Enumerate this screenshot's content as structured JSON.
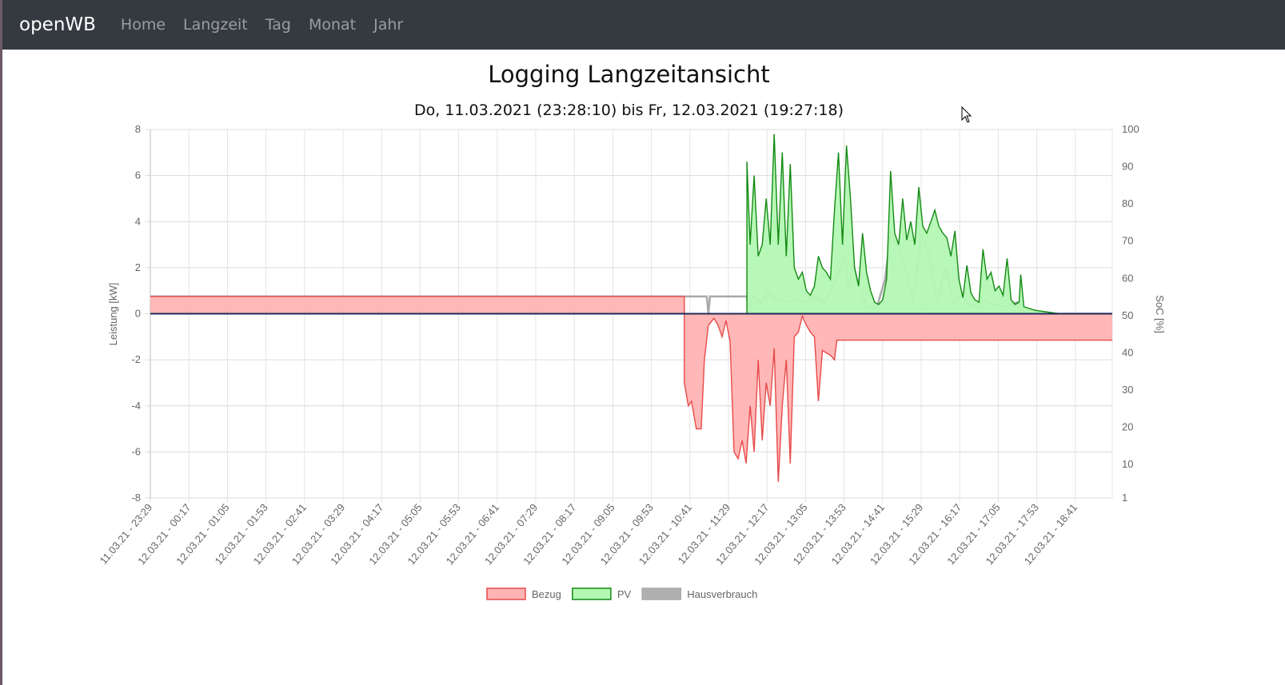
{
  "nav": {
    "brand": "openWB",
    "items": [
      "Home",
      "Langzeit",
      "Tag",
      "Monat",
      "Jahr"
    ]
  },
  "page": {
    "title": "Logging Langzeitansicht",
    "subtitle": "Do, 11.03.2021 (23:28:10) bis Fr, 12.03.2021 (19:27:18)"
  },
  "chart_data": {
    "type": "line",
    "title": "Logging Langzeitansicht",
    "x_unit": "minutes since 11.03.21 23:29",
    "xlim": [
      0,
      1198
    ],
    "x_ticks": [
      0,
      48,
      96,
      144,
      192,
      240,
      288,
      336,
      384,
      432,
      480,
      528,
      576,
      624,
      672,
      720,
      768,
      816,
      864,
      912,
      960,
      1008,
      1056,
      1104,
      1152
    ],
    "x_tick_labels": [
      "11.03.21 - 23:29",
      "12.03.21 - 00:17",
      "12.03.21 - 01:05",
      "12.03.21 - 01:53",
      "12.03.21 - 02:41",
      "12.03.21 - 03:29",
      "12.03.21 - 04:17",
      "12.03.21 - 05:05",
      "12.03.21 - 05:53",
      "12.03.21 - 06:41",
      "12.03.21 - 07:29",
      "12.03.21 - 08:17",
      "12.03.21 - 09:05",
      "12.03.21 - 09:53",
      "12.03.21 - 10:41",
      "12.03.21 - 11:29",
      "12.03.21 - 12:17",
      "12.03.21 - 13:05",
      "12.03.21 - 13:53",
      "12.03.21 - 14:41",
      "12.03.21 - 15:29",
      "12.03.21 - 16:17",
      "12.03.21 - 17:05",
      "12.03.21 - 17:53",
      "12.03.21 - 18:41"
    ],
    "ylabel": "Leistung [kW]",
    "ylim": [
      -8,
      8
    ],
    "y_ticks": [
      8,
      6,
      4,
      2,
      0,
      -2,
      -4,
      -6,
      -8
    ],
    "y2label": "SoC [%]",
    "y2lim": [
      1,
      100
    ],
    "y2_ticks": [
      100,
      90,
      80,
      70,
      60,
      50,
      40,
      30,
      20,
      10,
      1
    ],
    "legend_position": "bottom",
    "series": [
      {
        "name": "Bezug",
        "stroke": "#e84a4a",
        "fill": "#ffb3b3",
        "points": [
          [
            0,
            0.75
          ],
          [
            665,
            0.75
          ],
          [
            665,
            -3
          ],
          [
            670,
            -4
          ],
          [
            674,
            -3.8
          ],
          [
            680,
            -5
          ],
          [
            686,
            -5
          ],
          [
            690,
            -2
          ],
          [
            695,
            -0.5
          ],
          [
            702,
            -0.2
          ],
          [
            707,
            -0.5
          ],
          [
            712,
            -1
          ],
          [
            717,
            -0.3
          ],
          [
            722,
            -1.2
          ],
          [
            727,
            -6
          ],
          [
            732,
            -6.3
          ],
          [
            737,
            -5.5
          ],
          [
            742,
            -6.5
          ],
          [
            747,
            -4
          ],
          [
            752,
            -6
          ],
          [
            757,
            -2
          ],
          [
            762,
            -5.5
          ],
          [
            767,
            -3
          ],
          [
            772,
            -4
          ],
          [
            777,
            -1.5
          ],
          [
            782,
            -7.3
          ],
          [
            787,
            -4
          ],
          [
            792,
            -2
          ],
          [
            797,
            -6.5
          ],
          [
            802,
            -1
          ],
          [
            807,
            -0.8
          ],
          [
            812,
            -0.1
          ],
          [
            817,
            -0.5
          ],
          [
            822,
            -0.8
          ],
          [
            827,
            -1
          ],
          [
            832,
            -3.8
          ],
          [
            837,
            -1.6
          ],
          [
            842,
            -1.7
          ],
          [
            847,
            -1.8
          ],
          [
            852,
            -2
          ],
          [
            855,
            -1.15
          ],
          [
            1198,
            -1.15
          ]
        ]
      },
      {
        "name": "PV",
        "stroke": "#138a13",
        "fill": "#b3f7b3",
        "points": [
          [
            0,
            0
          ],
          [
            743,
            0
          ],
          [
            743,
            6.6
          ],
          [
            747,
            3
          ],
          [
            752,
            6
          ],
          [
            757,
            2.5
          ],
          [
            762,
            3
          ],
          [
            767,
            5
          ],
          [
            772,
            3
          ],
          [
            777,
            7.8
          ],
          [
            782,
            3
          ],
          [
            787,
            7
          ],
          [
            792,
            2.5
          ],
          [
            797,
            6.5
          ],
          [
            802,
            2
          ],
          [
            807,
            1.5
          ],
          [
            812,
            1.8
          ],
          [
            817,
            1
          ],
          [
            822,
            0.8
          ],
          [
            827,
            1.2
          ],
          [
            832,
            2.5
          ],
          [
            837,
            2
          ],
          [
            842,
            1.8
          ],
          [
            847,
            1.5
          ],
          [
            852,
            4.5
          ],
          [
            857,
            7
          ],
          [
            862,
            3
          ],
          [
            867,
            7.3
          ],
          [
            872,
            5
          ],
          [
            877,
            2
          ],
          [
            882,
            1.2
          ],
          [
            887,
            3.5
          ],
          [
            892,
            1.8
          ],
          [
            897,
            1
          ],
          [
            902,
            0.5
          ],
          [
            907,
            0.4
          ],
          [
            912,
            0.6
          ],
          [
            917,
            1.5
          ],
          [
            922,
            6.2
          ],
          [
            927,
            3.5
          ],
          [
            932,
            3
          ],
          [
            937,
            5
          ],
          [
            942,
            3.2
          ],
          [
            947,
            4
          ],
          [
            952,
            3
          ],
          [
            957,
            5.5
          ],
          [
            962,
            3.8
          ],
          [
            967,
            3.5
          ],
          [
            972,
            4
          ],
          [
            977,
            4.5
          ],
          [
            982,
            3.8
          ],
          [
            987,
            3.5
          ],
          [
            992,
            3.3
          ],
          [
            997,
            2.5
          ],
          [
            1002,
            3.6
          ],
          [
            1007,
            1.5
          ],
          [
            1012,
            0.7
          ],
          [
            1017,
            2.1
          ],
          [
            1022,
            0.9
          ],
          [
            1027,
            0.6
          ],
          [
            1032,
            0.5
          ],
          [
            1037,
            2.8
          ],
          [
            1042,
            1.5
          ],
          [
            1047,
            1.8
          ],
          [
            1052,
            1
          ],
          [
            1057,
            1.2
          ],
          [
            1062,
            0.8
          ],
          [
            1067,
            2.4
          ],
          [
            1072,
            0.6
          ],
          [
            1077,
            0.4
          ],
          [
            1082,
            0.5
          ],
          [
            1084,
            1.7
          ],
          [
            1088,
            0.3
          ],
          [
            1102,
            0.15
          ],
          [
            1132,
            0
          ],
          [
            1198,
            0
          ]
        ]
      },
      {
        "name": "Hausverbrauch",
        "stroke": "#a8a8a8",
        "fill": "#b0b0b0",
        "points": [
          [
            0,
            0.75
          ],
          [
            693,
            0.75
          ],
          [
            695,
            0
          ],
          [
            697,
            0.75
          ],
          [
            743,
            0.75
          ],
          [
            745,
            0
          ],
          [
            750,
            0.8
          ],
          [
            760,
            0.5
          ],
          [
            770,
            0.9
          ],
          [
            780,
            0.6
          ],
          [
            790,
            0.5
          ],
          [
            800,
            0.6
          ],
          [
            810,
            0.5
          ],
          [
            820,
            0.6
          ],
          [
            830,
            0.7
          ],
          [
            840,
            0.5
          ],
          [
            850,
            1.2
          ],
          [
            860,
            2
          ],
          [
            865,
            2.5
          ],
          [
            870,
            1
          ],
          [
            875,
            2.2
          ],
          [
            880,
            1.5
          ],
          [
            890,
            0.5
          ],
          [
            900,
            0.2
          ],
          [
            905,
            0.3
          ],
          [
            915,
            1.5
          ],
          [
            922,
            3.5
          ],
          [
            930,
            3
          ],
          [
            940,
            2
          ],
          [
            950,
            0.5
          ],
          [
            960,
            3.5
          ],
          [
            970,
            2.5
          ],
          [
            980,
            0.5
          ],
          [
            990,
            2
          ],
          [
            1000,
            0.5
          ],
          [
            1010,
            0.8
          ],
          [
            1020,
            0.4
          ],
          [
            1030,
            0.3
          ],
          [
            1040,
            0.6
          ],
          [
            1050,
            0.4
          ],
          [
            1060,
            0.3
          ],
          [
            1080,
            0.5
          ],
          [
            1090,
            0
          ],
          [
            1198,
            0
          ]
        ]
      }
    ]
  }
}
